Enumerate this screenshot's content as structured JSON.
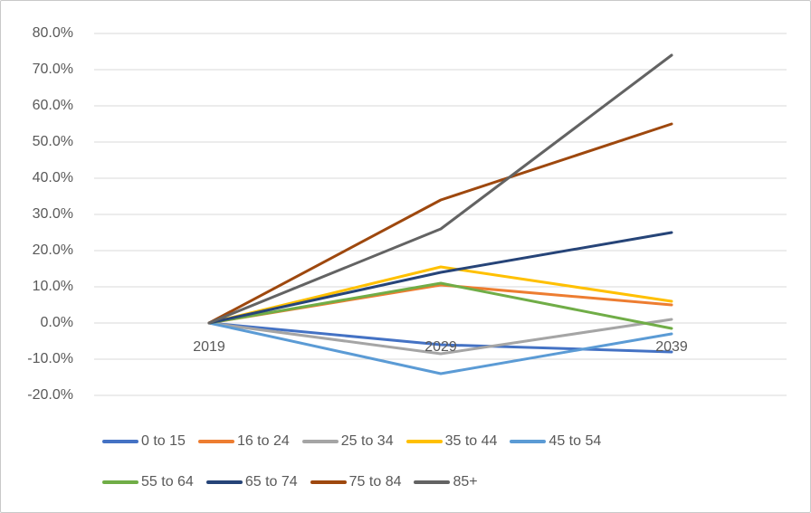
{
  "chart_data": {
    "type": "line",
    "x": [
      "2019",
      "2029",
      "2039"
    ],
    "series": [
      {
        "name": "0 to 15",
        "color": "#4472C4",
        "values": [
          0.0,
          -6.0,
          -8.0
        ]
      },
      {
        "name": "16 to 24",
        "color": "#ED7D31",
        "values": [
          0.0,
          10.5,
          5.0
        ]
      },
      {
        "name": "25 to 34",
        "color": "#A5A5A5",
        "values": [
          0.0,
          -8.5,
          1.0
        ]
      },
      {
        "name": "35 to 44",
        "color": "#FFC000",
        "values": [
          0.0,
          15.5,
          6.0
        ]
      },
      {
        "name": "45 to 54",
        "color": "#5B9BD5",
        "values": [
          0.0,
          -14.0,
          -3.0
        ]
      },
      {
        "name": "55 to 64",
        "color": "#70AD47",
        "values": [
          0.0,
          11.0,
          -1.5
        ]
      },
      {
        "name": "65 to 74",
        "color": "#264478",
        "values": [
          0.0,
          14.0,
          25.0
        ]
      },
      {
        "name": "75 to 84",
        "color": "#9E480E",
        "values": [
          0.0,
          34.0,
          55.0
        ]
      },
      {
        "name": "85+",
        "color": "#636363",
        "values": [
          0.0,
          26.0,
          74.0
        ]
      }
    ],
    "title": "",
    "xlabel": "",
    "ylabel": "",
    "ylim": [
      -20,
      80
    ],
    "yticks": [
      {
        "value": 80,
        "label": "80.0%"
      },
      {
        "value": 70,
        "label": "70.0%"
      },
      {
        "value": 60,
        "label": "60.0%"
      },
      {
        "value": 50,
        "label": "50.0%"
      },
      {
        "value": 40,
        "label": "40.0%"
      },
      {
        "value": 30,
        "label": "30.0%"
      },
      {
        "value": 20,
        "label": "20.0%"
      },
      {
        "value": 10,
        "label": "10.0%"
      },
      {
        "value": 0,
        "label": "0.0%"
      },
      {
        "value": -10,
        "label": "-10.0%"
      },
      {
        "value": -20,
        "label": "-20.0%"
      }
    ],
    "grid": true,
    "gridline_color": "#D9D9D9",
    "axis_text_color": "#595959",
    "legend_position": "bottom",
    "legend_rows": [
      5,
      4
    ]
  }
}
